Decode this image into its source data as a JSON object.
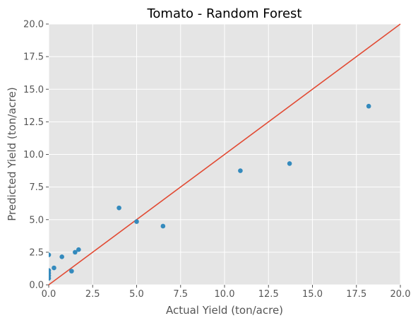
{
  "chart_data": {
    "type": "scatter",
    "title": "Tomato - Random Forest",
    "xlabel": "Actual Yield (ton/acre)",
    "ylabel": "Predicted Yield (ton/acre)",
    "xlim": [
      0,
      20
    ],
    "ylim": [
      0,
      20
    ],
    "xticks": [
      "0.0",
      "2.5",
      "5.0",
      "7.5",
      "10.0",
      "12.5",
      "15.0",
      "17.5",
      "20.0"
    ],
    "yticks": [
      "0.0",
      "2.5",
      "5.0",
      "7.5",
      "10.0",
      "12.5",
      "15.0",
      "17.5",
      "20.0"
    ],
    "grid": true,
    "background_color": "#e5e5e5",
    "point_color": "#348abd",
    "reference_line": {
      "type": "y=x",
      "color": "#e24a33"
    },
    "series": [
      {
        "points": [
          {
            "x": 0.0,
            "y": 2.3
          },
          {
            "x": 0.0,
            "y": 1.1
          },
          {
            "x": 0.0,
            "y": 0.9
          },
          {
            "x": 0.0,
            "y": 0.7
          },
          {
            "x": 0.0,
            "y": 0.5
          },
          {
            "x": 0.3,
            "y": 1.3
          },
          {
            "x": 0.75,
            "y": 2.15
          },
          {
            "x": 1.3,
            "y": 1.05
          },
          {
            "x": 1.5,
            "y": 2.5
          },
          {
            "x": 1.7,
            "y": 2.7
          },
          {
            "x": 4.0,
            "y": 5.9
          },
          {
            "x": 5.0,
            "y": 4.85
          },
          {
            "x": 6.5,
            "y": 4.5
          },
          {
            "x": 10.9,
            "y": 8.75
          },
          {
            "x": 13.7,
            "y": 9.3
          },
          {
            "x": 18.2,
            "y": 13.7
          }
        ]
      }
    ]
  }
}
